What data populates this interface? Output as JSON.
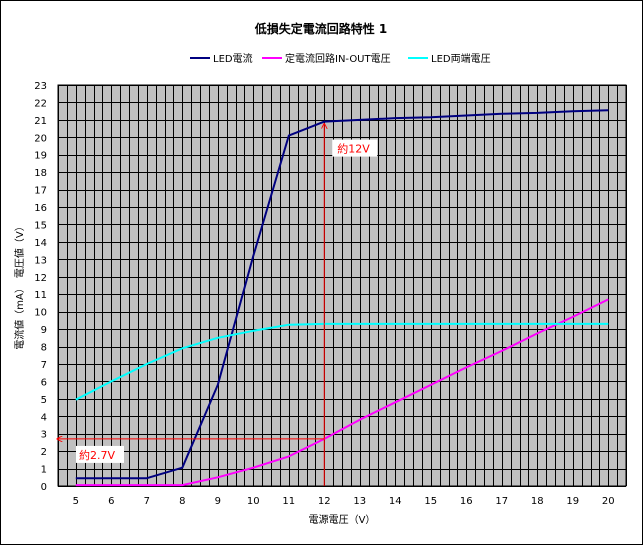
{
  "chart_data": {
    "type": "line",
    "title": "低損失定電流回路特性 1",
    "xlabel": "電源電圧（V）",
    "ylabel": "電流値（mA）　電圧値（V）",
    "xlim": [
      4.5,
      20.5
    ],
    "ylim": [
      0,
      23
    ],
    "x_ticks": [
      5,
      6,
      7,
      8,
      9,
      10,
      11,
      12,
      13,
      14,
      15,
      16,
      17,
      18,
      19,
      20
    ],
    "y_ticks": [
      0,
      1,
      2,
      3,
      4,
      5,
      6,
      7,
      8,
      9,
      10,
      11,
      12,
      13,
      14,
      15,
      16,
      17,
      18,
      19,
      20,
      21,
      22,
      23
    ],
    "grid": true,
    "legend_position": "top",
    "background_color": "#c0c0c0",
    "series": [
      {
        "name": "LED電流",
        "color": "#000080",
        "x": [
          5,
          6,
          7,
          8,
          9,
          10,
          11,
          12,
          13,
          14,
          15,
          16,
          17,
          18,
          19,
          20
        ],
        "values": [
          0.45,
          0.45,
          0.45,
          1.05,
          5.8,
          13.2,
          20.1,
          20.9,
          21.0,
          21.1,
          21.15,
          21.25,
          21.35,
          21.4,
          21.5,
          21.55
        ]
      },
      {
        "name": "定電流回路IN-OUT電圧",
        "color": "#ff00ff",
        "x": [
          5,
          6,
          7,
          8,
          9,
          10,
          11,
          12,
          13,
          14,
          15,
          16,
          17,
          18,
          19,
          20
        ],
        "values": [
          0.05,
          0.05,
          0.05,
          0.05,
          0.5,
          1.05,
          1.7,
          2.7,
          3.8,
          4.8,
          5.8,
          6.8,
          7.75,
          8.75,
          9.7,
          10.7
        ]
      },
      {
        "name": "LED両端電圧",
        "color": "#00ffff",
        "x": [
          5,
          6,
          7,
          8,
          9,
          10,
          11,
          12,
          13,
          14,
          15,
          16,
          17,
          18,
          19,
          20
        ],
        "values": [
          4.95,
          6.0,
          7.0,
          7.9,
          8.5,
          8.9,
          9.25,
          9.3,
          9.3,
          9.3,
          9.3,
          9.3,
          9.3,
          9.3,
          9.3,
          9.3
        ]
      }
    ],
    "annotations": [
      {
        "label": "約12V",
        "x": 12,
        "y": 20.9,
        "arrow": "vertical",
        "color": "#ff0000"
      },
      {
        "label": "約2.7V",
        "x": 12,
        "y": 2.7,
        "arrow": "horizontal",
        "color": "#ff0000"
      }
    ]
  }
}
